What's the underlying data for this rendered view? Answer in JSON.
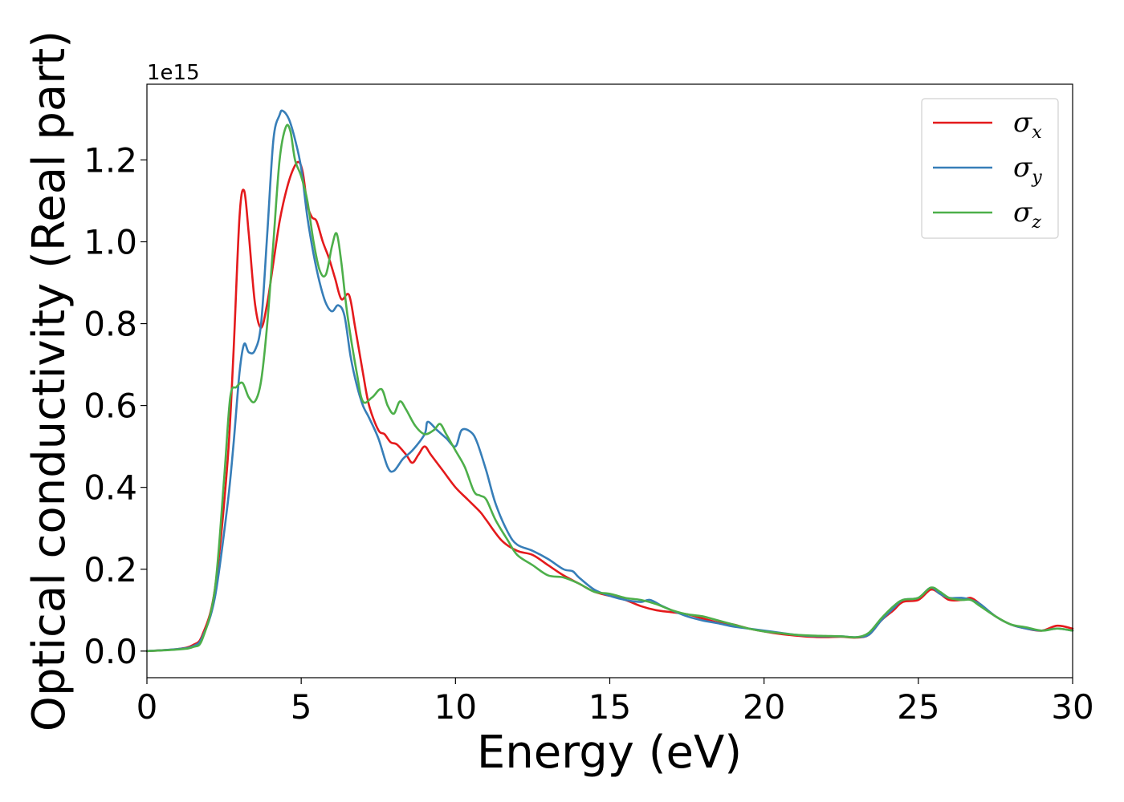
{
  "chart_data": {
    "type": "line",
    "title": "",
    "xlabel": "Energy (eV)",
    "ylabel": "Optical conductivity (Real part)",
    "y_offset_label": "1e15",
    "xlim": [
      0,
      30
    ],
    "ylim": [
      -0.065,
      1.385
    ],
    "xticks": [
      0,
      5,
      10,
      15,
      20,
      25,
      30
    ],
    "xtick_labels": [
      "0",
      "5",
      "10",
      "15",
      "20",
      "25",
      "30"
    ],
    "yticks": [
      0.0,
      0.2,
      0.4,
      0.6,
      0.8,
      1.0,
      1.2
    ],
    "ytick_labels": [
      "0.0",
      "0.2",
      "0.4",
      "0.6",
      "0.8",
      "1.0",
      "1.2"
    ],
    "grid": false,
    "legend_position": "top-right",
    "series": [
      {
        "name": "σx",
        "symbol": "σ",
        "subscript": "x",
        "color": "#e41a1c",
        "points": [
          [
            0,
            0
          ],
          [
            1,
            0.005
          ],
          [
            1.5,
            0.015
          ],
          [
            1.8,
            0.04
          ],
          [
            2.2,
            0.15
          ],
          [
            2.6,
            0.45
          ],
          [
            2.8,
            0.72
          ],
          [
            3.0,
            1.06
          ],
          [
            3.15,
            1.125
          ],
          [
            3.3,
            1.02
          ],
          [
            3.5,
            0.85
          ],
          [
            3.7,
            0.79
          ],
          [
            3.9,
            0.85
          ],
          [
            4.1,
            0.95
          ],
          [
            4.3,
            1.05
          ],
          [
            4.5,
            1.12
          ],
          [
            4.7,
            1.17
          ],
          [
            4.9,
            1.195
          ],
          [
            5.05,
            1.17
          ],
          [
            5.2,
            1.09
          ],
          [
            5.35,
            1.06
          ],
          [
            5.5,
            1.05
          ],
          [
            5.7,
            1.0
          ],
          [
            5.9,
            0.96
          ],
          [
            6.1,
            0.91
          ],
          [
            6.3,
            0.86
          ],
          [
            6.55,
            0.87
          ],
          [
            6.75,
            0.79
          ],
          [
            7.0,
            0.68
          ],
          [
            7.2,
            0.6
          ],
          [
            7.5,
            0.54
          ],
          [
            7.7,
            0.53
          ],
          [
            7.9,
            0.51
          ],
          [
            8.1,
            0.505
          ],
          [
            8.4,
            0.48
          ],
          [
            8.6,
            0.46
          ],
          [
            8.8,
            0.48
          ],
          [
            9.0,
            0.5
          ],
          [
            9.2,
            0.48
          ],
          [
            9.6,
            0.44
          ],
          [
            10.0,
            0.4
          ],
          [
            10.4,
            0.37
          ],
          [
            10.8,
            0.34
          ],
          [
            11.0,
            0.32
          ],
          [
            11.5,
            0.27
          ],
          [
            12.0,
            0.245
          ],
          [
            12.5,
            0.235
          ],
          [
            13.0,
            0.21
          ],
          [
            13.5,
            0.185
          ],
          [
            14.0,
            0.165
          ],
          [
            14.5,
            0.145
          ],
          [
            15.0,
            0.135
          ],
          [
            15.5,
            0.125
          ],
          [
            16.0,
            0.11
          ],
          [
            16.5,
            0.1
          ],
          [
            17.0,
            0.095
          ],
          [
            17.5,
            0.09
          ],
          [
            18.0,
            0.08
          ],
          [
            18.5,
            0.07
          ],
          [
            19.0,
            0.065
          ],
          [
            19.5,
            0.055
          ],
          [
            20.0,
            0.048
          ],
          [
            20.5,
            0.042
          ],
          [
            21.0,
            0.038
          ],
          [
            21.5,
            0.035
          ],
          [
            22.0,
            0.034
          ],
          [
            22.5,
            0.035
          ],
          [
            23.0,
            0.033
          ],
          [
            23.4,
            0.04
          ],
          [
            23.8,
            0.075
          ],
          [
            24.2,
            0.1
          ],
          [
            24.5,
            0.12
          ],
          [
            25.0,
            0.125
          ],
          [
            25.4,
            0.15
          ],
          [
            25.7,
            0.14
          ],
          [
            26.0,
            0.125
          ],
          [
            26.4,
            0.125
          ],
          [
            26.7,
            0.13
          ],
          [
            27.0,
            0.115
          ],
          [
            27.5,
            0.085
          ],
          [
            28.0,
            0.065
          ],
          [
            28.5,
            0.055
          ],
          [
            29.0,
            0.05
          ],
          [
            29.5,
            0.062
          ],
          [
            30.0,
            0.055
          ]
        ]
      },
      {
        "name": "σy",
        "symbol": "σ",
        "subscript": "y",
        "color": "#377eb8",
        "points": [
          [
            0,
            0
          ],
          [
            1,
            0.005
          ],
          [
            1.5,
            0.012
          ],
          [
            1.8,
            0.035
          ],
          [
            2.2,
            0.13
          ],
          [
            2.6,
            0.35
          ],
          [
            2.8,
            0.5
          ],
          [
            3.0,
            0.68
          ],
          [
            3.15,
            0.75
          ],
          [
            3.3,
            0.73
          ],
          [
            3.5,
            0.735
          ],
          [
            3.7,
            0.8
          ],
          [
            3.9,
            1.02
          ],
          [
            4.1,
            1.25
          ],
          [
            4.3,
            1.31
          ],
          [
            4.4,
            1.32
          ],
          [
            4.6,
            1.3
          ],
          [
            4.8,
            1.25
          ],
          [
            5.0,
            1.18
          ],
          [
            5.2,
            1.06
          ],
          [
            5.4,
            0.97
          ],
          [
            5.6,
            0.9
          ],
          [
            5.8,
            0.85
          ],
          [
            6.0,
            0.83
          ],
          [
            6.2,
            0.845
          ],
          [
            6.4,
            0.82
          ],
          [
            6.6,
            0.72
          ],
          [
            6.8,
            0.65
          ],
          [
            7.0,
            0.6
          ],
          [
            7.2,
            0.57
          ],
          [
            7.5,
            0.52
          ],
          [
            7.8,
            0.45
          ],
          [
            8.0,
            0.44
          ],
          [
            8.3,
            0.47
          ],
          [
            8.6,
            0.49
          ],
          [
            9.0,
            0.53
          ],
          [
            9.1,
            0.56
          ],
          [
            9.4,
            0.54
          ],
          [
            9.7,
            0.52
          ],
          [
            10.0,
            0.5
          ],
          [
            10.2,
            0.54
          ],
          [
            10.5,
            0.535
          ],
          [
            10.7,
            0.51
          ],
          [
            11.0,
            0.44
          ],
          [
            11.3,
            0.36
          ],
          [
            11.7,
            0.29
          ],
          [
            12.0,
            0.26
          ],
          [
            12.5,
            0.245
          ],
          [
            13.0,
            0.225
          ],
          [
            13.5,
            0.2
          ],
          [
            13.8,
            0.195
          ],
          [
            14.0,
            0.18
          ],
          [
            14.5,
            0.15
          ],
          [
            15.0,
            0.135
          ],
          [
            15.5,
            0.125
          ],
          [
            16.0,
            0.12
          ],
          [
            16.3,
            0.125
          ],
          [
            16.7,
            0.11
          ],
          [
            17.0,
            0.1
          ],
          [
            17.5,
            0.085
          ],
          [
            18.0,
            0.075
          ],
          [
            18.5,
            0.068
          ],
          [
            19.0,
            0.06
          ],
          [
            19.5,
            0.055
          ],
          [
            20.0,
            0.05
          ],
          [
            20.5,
            0.045
          ],
          [
            21.0,
            0.04
          ],
          [
            21.5,
            0.037
          ],
          [
            22.0,
            0.036
          ],
          [
            22.5,
            0.036
          ],
          [
            23.0,
            0.034
          ],
          [
            23.4,
            0.04
          ],
          [
            23.8,
            0.075
          ],
          [
            24.2,
            0.105
          ],
          [
            24.5,
            0.125
          ],
          [
            25.0,
            0.13
          ],
          [
            25.4,
            0.155
          ],
          [
            25.7,
            0.14
          ],
          [
            26.0,
            0.13
          ],
          [
            26.4,
            0.13
          ],
          [
            26.7,
            0.125
          ],
          [
            27.0,
            0.115
          ],
          [
            27.5,
            0.085
          ],
          [
            28.0,
            0.065
          ],
          [
            28.5,
            0.055
          ],
          [
            29.0,
            0.05
          ],
          [
            29.5,
            0.055
          ],
          [
            30.0,
            0.05
          ]
        ]
      },
      {
        "name": "σz",
        "symbol": "σ",
        "subscript": "z",
        "color": "#4daf4a",
        "points": [
          [
            0,
            0
          ],
          [
            1,
            0.004
          ],
          [
            1.5,
            0.01
          ],
          [
            1.8,
            0.03
          ],
          [
            2.2,
            0.15
          ],
          [
            2.5,
            0.42
          ],
          [
            2.7,
            0.62
          ],
          [
            2.9,
            0.645
          ],
          [
            3.1,
            0.655
          ],
          [
            3.3,
            0.62
          ],
          [
            3.5,
            0.61
          ],
          [
            3.7,
            0.66
          ],
          [
            3.9,
            0.8
          ],
          [
            4.1,
            1.0
          ],
          [
            4.3,
            1.2
          ],
          [
            4.5,
            1.28
          ],
          [
            4.65,
            1.27
          ],
          [
            4.8,
            1.2
          ],
          [
            5.0,
            1.16
          ],
          [
            5.2,
            1.1
          ],
          [
            5.4,
            1.0
          ],
          [
            5.6,
            0.93
          ],
          [
            5.8,
            0.92
          ],
          [
            6.0,
            0.99
          ],
          [
            6.15,
            1.02
          ],
          [
            6.3,
            0.95
          ],
          [
            6.5,
            0.82
          ],
          [
            6.8,
            0.68
          ],
          [
            7.0,
            0.61
          ],
          [
            7.3,
            0.62
          ],
          [
            7.6,
            0.64
          ],
          [
            7.8,
            0.6
          ],
          [
            8.0,
            0.58
          ],
          [
            8.2,
            0.61
          ],
          [
            8.4,
            0.59
          ],
          [
            8.7,
            0.55
          ],
          [
            9.0,
            0.53
          ],
          [
            9.3,
            0.54
          ],
          [
            9.5,
            0.555
          ],
          [
            9.7,
            0.53
          ],
          [
            10.0,
            0.49
          ],
          [
            10.3,
            0.45
          ],
          [
            10.6,
            0.39
          ],
          [
            10.8,
            0.38
          ],
          [
            11.0,
            0.37
          ],
          [
            11.3,
            0.32
          ],
          [
            11.7,
            0.27
          ],
          [
            12.0,
            0.235
          ],
          [
            12.5,
            0.21
          ],
          [
            13.0,
            0.185
          ],
          [
            13.5,
            0.18
          ],
          [
            14.0,
            0.165
          ],
          [
            14.5,
            0.145
          ],
          [
            15.0,
            0.14
          ],
          [
            15.5,
            0.13
          ],
          [
            16.0,
            0.125
          ],
          [
            16.5,
            0.115
          ],
          [
            17.0,
            0.1
          ],
          [
            17.5,
            0.09
          ],
          [
            18.0,
            0.085
          ],
          [
            18.5,
            0.075
          ],
          [
            19.0,
            0.065
          ],
          [
            19.5,
            0.055
          ],
          [
            20.0,
            0.048
          ],
          [
            20.5,
            0.044
          ],
          [
            21.0,
            0.04
          ],
          [
            21.5,
            0.038
          ],
          [
            22.0,
            0.037
          ],
          [
            22.5,
            0.036
          ],
          [
            23.0,
            0.034
          ],
          [
            23.4,
            0.045
          ],
          [
            23.8,
            0.08
          ],
          [
            24.2,
            0.11
          ],
          [
            24.5,
            0.125
          ],
          [
            25.0,
            0.13
          ],
          [
            25.4,
            0.155
          ],
          [
            25.7,
            0.145
          ],
          [
            26.0,
            0.13
          ],
          [
            26.4,
            0.125
          ],
          [
            26.7,
            0.125
          ],
          [
            27.0,
            0.11
          ],
          [
            27.5,
            0.085
          ],
          [
            28.0,
            0.065
          ],
          [
            28.5,
            0.058
          ],
          [
            29.0,
            0.05
          ],
          [
            29.5,
            0.055
          ],
          [
            30.0,
            0.05
          ]
        ]
      }
    ]
  }
}
